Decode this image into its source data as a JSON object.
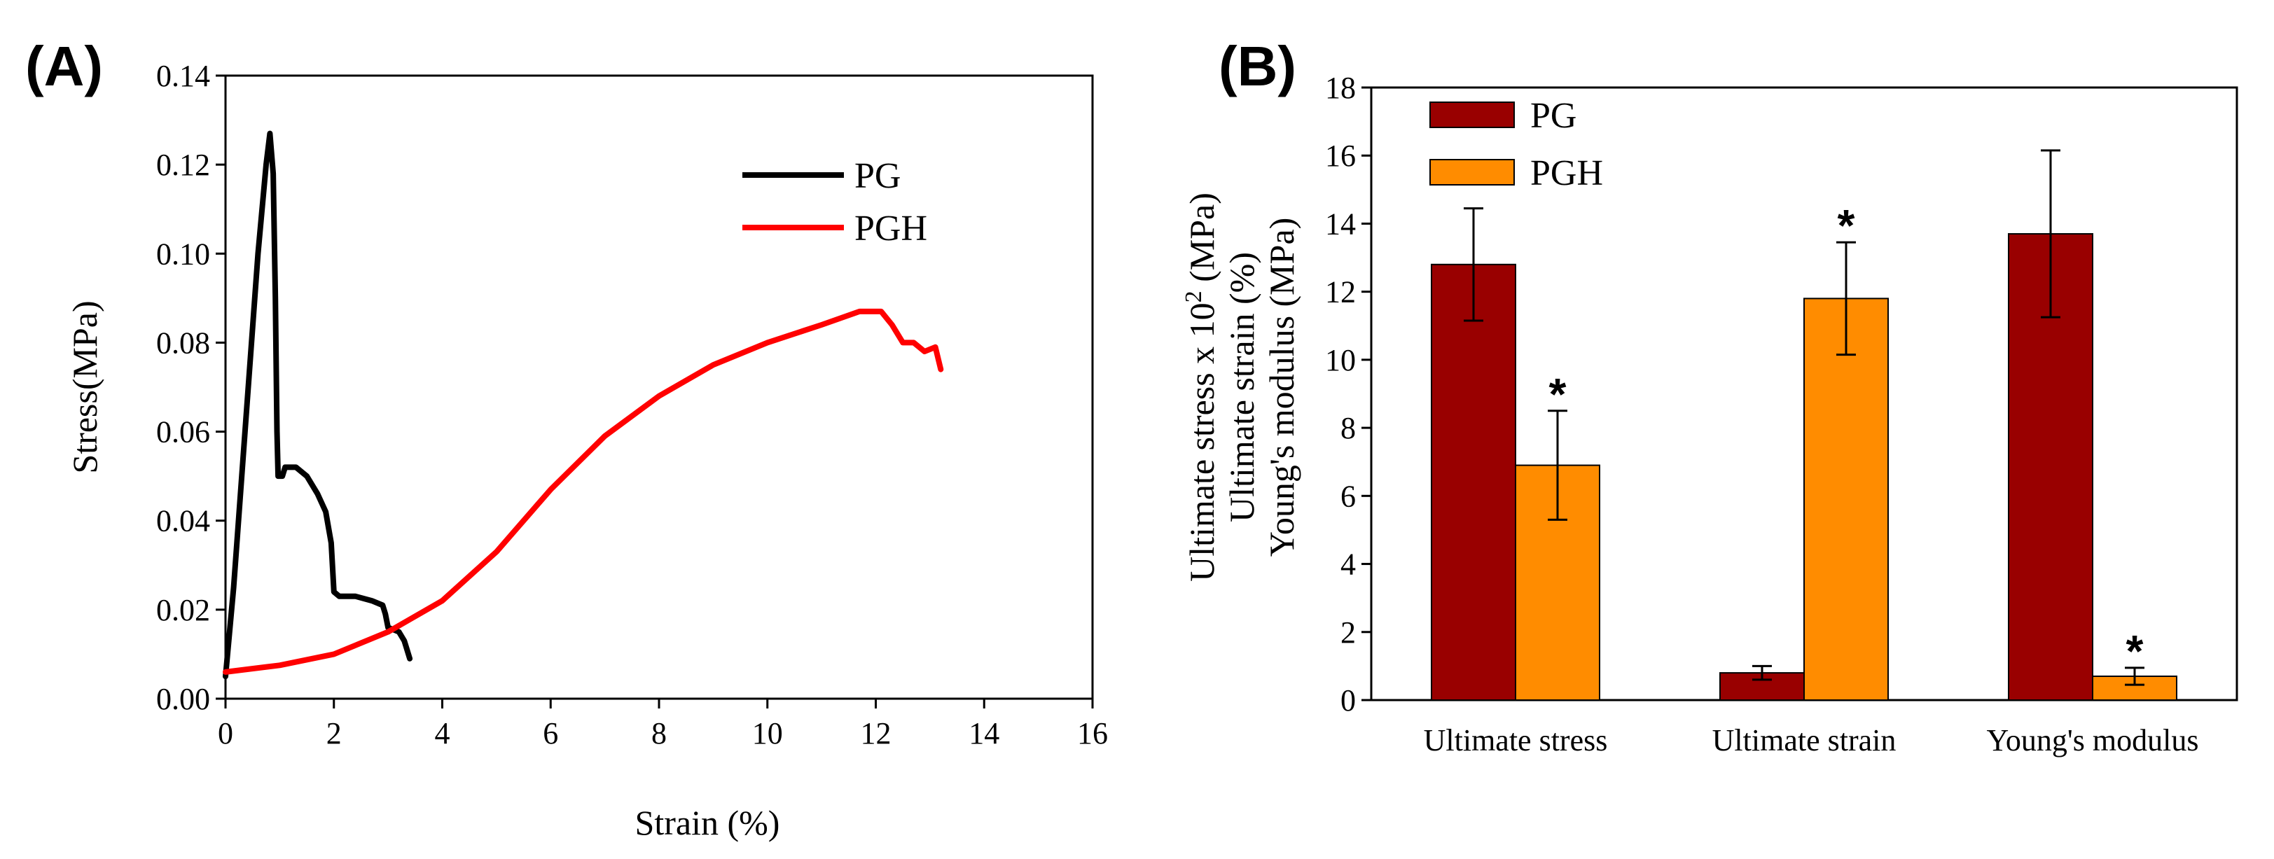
{
  "chart_data": [
    {
      "panel": "(A)",
      "type": "line",
      "xlabel": "Strain (%)",
      "ylabel": "Stress(MPa)",
      "xlim": [
        0,
        16
      ],
      "ylim": [
        0,
        0.14
      ],
      "xticks": [
        "0",
        "2",
        "4",
        "6",
        "8",
        "10",
        "12",
        "14",
        "16"
      ],
      "yticks": [
        "0.00",
        "0.02",
        "0.04",
        "0.06",
        "0.08",
        "0.10",
        "0.12",
        "0.14"
      ],
      "legend_position": "top-right",
      "series": [
        {
          "name": "PG",
          "color": "#000000",
          "points": [
            [
              0,
              0.005
            ],
            [
              0.15,
              0.025
            ],
            [
              0.3,
              0.05
            ],
            [
              0.45,
              0.075
            ],
            [
              0.6,
              0.1
            ],
            [
              0.75,
              0.12
            ],
            [
              0.82,
              0.127
            ],
            [
              0.88,
              0.118
            ],
            [
              0.92,
              0.09
            ],
            [
              0.95,
              0.06
            ],
            [
              0.97,
              0.05
            ],
            [
              1.05,
              0.05
            ],
            [
              1.1,
              0.052
            ],
            [
              1.3,
              0.052
            ],
            [
              1.5,
              0.05
            ],
            [
              1.7,
              0.046
            ],
            [
              1.85,
              0.042
            ],
            [
              1.95,
              0.035
            ],
            [
              2.0,
              0.024
            ],
            [
              2.1,
              0.023
            ],
            [
              2.4,
              0.023
            ],
            [
              2.7,
              0.022
            ],
            [
              2.9,
              0.021
            ],
            [
              2.95,
              0.019
            ],
            [
              3.0,
              0.016
            ],
            [
              3.2,
              0.015
            ],
            [
              3.3,
              0.013
            ],
            [
              3.35,
              0.011
            ],
            [
              3.4,
              0.009
            ]
          ]
        },
        {
          "name": "PGH",
          "color": "#ff0000",
          "points": [
            [
              0,
              0.006
            ],
            [
              1,
              0.0075
            ],
            [
              2,
              0.01
            ],
            [
              3,
              0.015
            ],
            [
              4,
              0.022
            ],
            [
              5,
              0.033
            ],
            [
              6,
              0.047
            ],
            [
              7,
              0.059
            ],
            [
              8,
              0.068
            ],
            [
              9,
              0.075
            ],
            [
              10,
              0.08
            ],
            [
              11,
              0.084
            ],
            [
              11.7,
              0.087
            ],
            [
              12.1,
              0.087
            ],
            [
              12.3,
              0.084
            ],
            [
              12.5,
              0.08
            ],
            [
              12.7,
              0.08
            ],
            [
              12.9,
              0.078
            ],
            [
              13.1,
              0.079
            ],
            [
              13.2,
              0.074
            ]
          ]
        }
      ]
    },
    {
      "panel": "(B)",
      "type": "bar",
      "ylabel_lines": [
        "Ultimate stress x 10",
        "2",
        " (MPa)",
        "Ultimate strain (%)",
        "Young's modulus (MPa)"
      ],
      "categories": [
        "Ultimate stress",
        "Ultimate strain",
        "Young's modulus"
      ],
      "ylim": [
        0,
        18
      ],
      "yticks": [
        "0",
        "2",
        "4",
        "6",
        "8",
        "10",
        "12",
        "14",
        "16",
        "18"
      ],
      "legend_position": "top-left",
      "series": [
        {
          "name": "PG",
          "color": "#990000",
          "values": [
            12.8,
            0.8,
            13.7
          ],
          "errors": [
            1.65,
            0.2,
            2.45
          ],
          "significance": [
            "",
            "",
            ""
          ]
        },
        {
          "name": "PGH",
          "color": "#ff8c00",
          "values": [
            6.9,
            11.8,
            0.7
          ],
          "errors": [
            1.6,
            1.65,
            0.25
          ],
          "significance": [
            "*",
            "*",
            "*"
          ]
        }
      ]
    }
  ]
}
